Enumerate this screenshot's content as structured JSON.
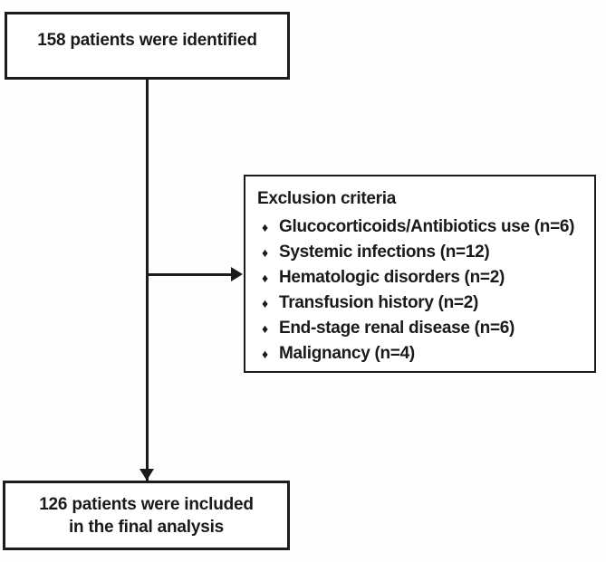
{
  "flowchart": {
    "identified_box": {
      "text": "158 patients were identified"
    },
    "exclusion_box": {
      "heading": "Exclusion criteria",
      "bullet_char": "♦",
      "items": [
        "Glucocorticoids/Antibiotics use (n=6)",
        "Systemic infections (n=12)",
        "Hematologic disorders (n=2)",
        "Transfusion history (n=2)",
        "End-stage renal disease (n=6)",
        "Malignancy (n=4)"
      ]
    },
    "included_box": {
      "line1": "126 patients were included",
      "line2": "in the final analysis"
    },
    "colors": {
      "border": "#1c1c1c",
      "text": "#1a1a1a",
      "background": "#ffffff"
    }
  }
}
